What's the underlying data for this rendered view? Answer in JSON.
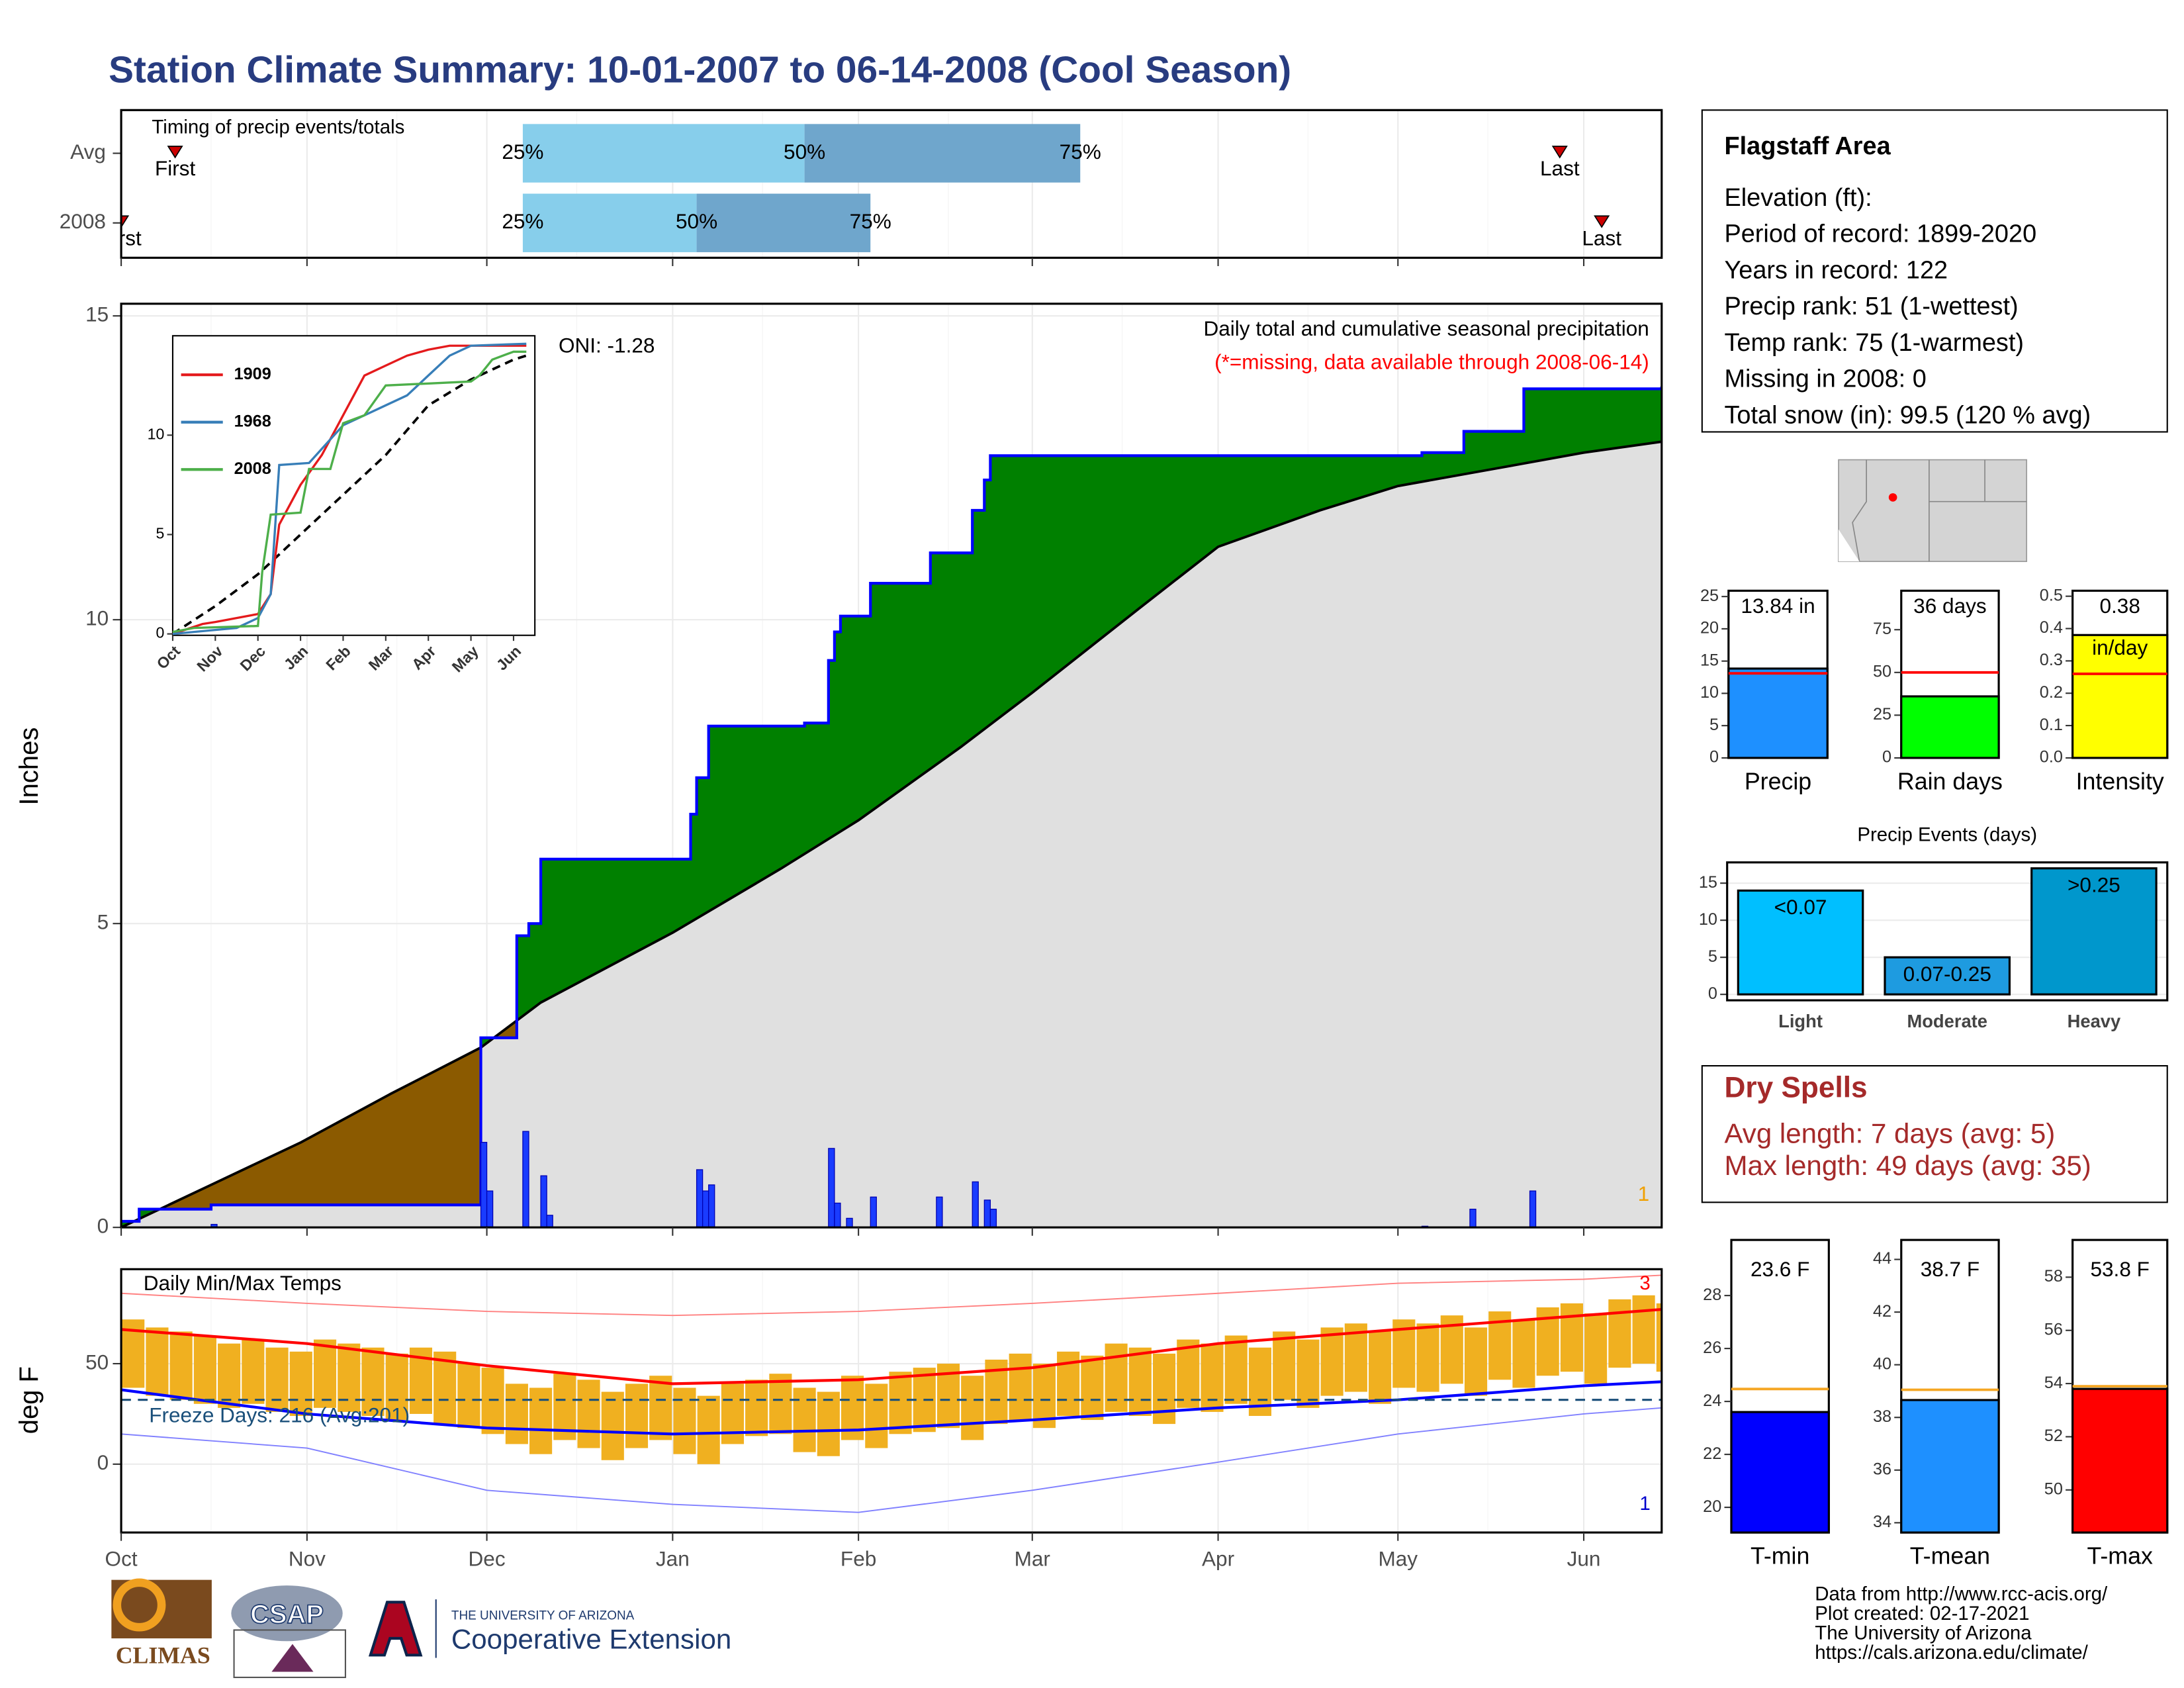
{
  "title": "Station Climate Summary: 10-01-2007 to 06-14-2008 (Cool Season)",
  "chart_data": [
    {
      "type": "timing",
      "title": "Timing of precip events/totals",
      "xlim": [
        0,
        257
      ],
      "colors": [
        "#87ceeb",
        "#6fa6cc"
      ],
      "marker_color": "#cc0000",
      "rows": [
        {
          "name": "Avg",
          "first": 9,
          "first_label": "First",
          "last": 240,
          "last_label": "Last",
          "quantiles": [
            67,
            114,
            160
          ],
          "quantile_labels": [
            "25%",
            "50%",
            "75%"
          ]
        },
        {
          "name": "2008",
          "first": 0,
          "first_label": "First",
          "last": 247,
          "last_label": "Last",
          "quantiles": [
            67,
            96,
            125
          ],
          "quantile_labels": [
            "25%",
            "50%",
            "75%"
          ]
        }
      ]
    },
    {
      "type": "precip_cumulative",
      "title": "Daily total and cumulative seasonal precipitation",
      "subtitle": "(*=missing, data available through 2008-06-14)",
      "annotation": "ONI: -1.28",
      "corner_label": "1",
      "ylabel": "Inches",
      "xlim": [
        0,
        257
      ],
      "ylim": [
        0,
        15.2
      ],
      "yticks": [
        0,
        5,
        10,
        15
      ],
      "grid": true,
      "above_color": "#008000",
      "below_color": "#8b5a00",
      "base_color": "#e0e0e0",
      "observed": {
        "color": "#0000ff",
        "x": [
          0,
          3,
          15,
          60,
          66,
          68,
          70,
          95,
          96,
          98,
          114,
          118,
          119,
          120,
          125,
          135,
          142,
          144,
          145,
          217,
          224,
          234,
          257
        ],
        "values": [
          0.1,
          0.3,
          0.37,
          3.12,
          4.8,
          5.0,
          6.06,
          6.8,
          7.4,
          8.25,
          8.3,
          9.33,
          9.8,
          10.06,
          10.6,
          11.1,
          11.8,
          12.3,
          12.7,
          12.75,
          13.1,
          13.8,
          13.84
        ]
      },
      "climatology": {
        "color": "#000000",
        "x": [
          0,
          15,
          30,
          45,
          60,
          70,
          92,
          110,
          123,
          140,
          152,
          170,
          183,
          200,
          213,
          230,
          244,
          257
        ],
        "values": [
          0,
          0.7,
          1.4,
          2.2,
          2.96,
          3.7,
          4.85,
          5.9,
          6.7,
          7.9,
          8.8,
          10.2,
          11.2,
          11.8,
          12.2,
          12.5,
          12.75,
          12.93
        ]
      },
      "daily": {
        "color": "#1a3cff",
        "x": [
          15,
          60,
          61,
          67,
          70,
          71,
          96,
          97,
          98,
          118,
          119,
          121,
          125,
          136,
          142,
          144,
          145,
          217,
          225,
          235
        ],
        "values": [
          0.05,
          1.4,
          0.6,
          1.58,
          0.85,
          0.2,
          0.95,
          0.6,
          0.7,
          1.3,
          0.4,
          0.15,
          0.5,
          0.5,
          0.75,
          0.45,
          0.3,
          0.02,
          0.3,
          0.6
        ]
      }
    },
    {
      "type": "line",
      "xlim": [
        0,
        8.5
      ],
      "ylim": [
        0,
        15
      ],
      "yticks": [
        0,
        5,
        10
      ],
      "xticks": [
        {
          "value": 0,
          "label": "Oct"
        },
        {
          "value": 1,
          "label": "Nov"
        },
        {
          "value": 2,
          "label": "Dec"
        },
        {
          "value": 3,
          "label": "Jan"
        },
        {
          "value": 4,
          "label": "Feb"
        },
        {
          "value": 5,
          "label": "Mar"
        },
        {
          "value": 6,
          "label": "Apr"
        },
        {
          "value": 7,
          "label": "May"
        },
        {
          "value": 8,
          "label": "Jun"
        }
      ],
      "series": [
        {
          "name": "1909",
          "color": "#e41a1c",
          "x": [
            0,
            0.7,
            1,
            2,
            2.3,
            2.5,
            3,
            3.5,
            4,
            4.5,
            5,
            5.5,
            6,
            6.5,
            8,
            8.3
          ],
          "values": [
            0,
            0.5,
            0.6,
            1.0,
            2.0,
            5.5,
            7.5,
            9,
            11,
            13,
            13.5,
            14,
            14.3,
            14.5,
            14.5,
            14.5
          ]
        },
        {
          "name": "1968",
          "color": "#377eb8",
          "x": [
            0,
            1,
            1.5,
            2,
            2.3,
            2.5,
            3.2,
            4,
            4.5,
            5,
            5.5,
            6,
            6.5,
            7,
            8.3
          ],
          "values": [
            0,
            0.2,
            0.3,
            0.8,
            2,
            8.5,
            8.6,
            10.5,
            11,
            11.5,
            12,
            13,
            14,
            14.5,
            14.6
          ]
        },
        {
          "name": "2008",
          "color": "#4daf4a",
          "x": [
            0,
            0.5,
            2,
            2.1,
            2.3,
            3,
            3.2,
            3.7,
            4,
            4.5,
            5,
            7,
            7.2,
            7.5,
            8,
            8.3
          ],
          "values": [
            0.1,
            0.3,
            0.4,
            3.1,
            6,
            6.1,
            8.3,
            8.3,
            10.6,
            11,
            12.5,
            12.7,
            13,
            13.8,
            14.2,
            14.2
          ]
        }
      ],
      "average": {
        "color": "#000000",
        "x": [
          0,
          1,
          2,
          3,
          4,
          5,
          6,
          7,
          8,
          8.3
        ],
        "values": [
          0,
          1.4,
          3,
          5,
          7,
          9,
          11.5,
          12.8,
          13.8,
          14.0
        ]
      }
    },
    {
      "type": "temperature_range",
      "title": "Daily Min/Max Temps",
      "ylabel": "deg F",
      "annotation": "Freeze Days: 216 (Avg:201)",
      "max_label": "3",
      "min_label": "1",
      "xlim": [
        0,
        257
      ],
      "ylim": [
        -34,
        97
      ],
      "yticks": [
        0,
        50
      ],
      "grid": true,
      "freeze_line": 32,
      "freeze_color": "#1a4f7a",
      "xticks": [
        {
          "value": 0,
          "label": "Oct"
        },
        {
          "value": 31,
          "label": "Nov"
        },
        {
          "value": 61,
          "label": "Dec"
        },
        {
          "value": 92,
          "label": "Jan"
        },
        {
          "value": 123,
          "label": "Feb"
        },
        {
          "value": 152,
          "label": "Mar"
        },
        {
          "value": 183,
          "label": "Apr"
        },
        {
          "value": 213,
          "label": "May"
        },
        {
          "value": 244,
          "label": "Jun"
        }
      ],
      "bars": {
        "color": "#f0b020",
        "x": [
          0,
          4,
          8,
          12,
          16,
          20,
          24,
          28,
          32,
          36,
          40,
          44,
          48,
          52,
          56,
          60,
          64,
          68,
          72,
          76,
          80,
          84,
          88,
          92,
          96,
          100,
          104,
          108,
          112,
          116,
          120,
          124,
          128,
          132,
          136,
          140,
          144,
          148,
          152,
          156,
          160,
          164,
          168,
          172,
          176,
          180,
          184,
          188,
          192,
          196,
          200,
          204,
          208,
          212,
          216,
          220,
          224,
          228,
          232,
          236,
          240,
          244,
          248,
          252,
          256
        ],
        "high": [
          72,
          68,
          66,
          64,
          60,
          62,
          58,
          56,
          62,
          60,
          58,
          55,
          58,
          56,
          50,
          48,
          40,
          38,
          45,
          42,
          36,
          40,
          44,
          38,
          34,
          40,
          42,
          45,
          38,
          36,
          44,
          40,
          46,
          48,
          50,
          44,
          52,
          55,
          50,
          56,
          54,
          60,
          58,
          55,
          62,
          60,
          64,
          58,
          66,
          62,
          68,
          70,
          66,
          72,
          70,
          74,
          68,
          76,
          72,
          78,
          80,
          75,
          82,
          84,
          80
        ],
        "low": [
          38,
          34,
          32,
          30,
          28,
          30,
          26,
          24,
          28,
          26,
          24,
          22,
          25,
          20,
          18,
          15,
          10,
          5,
          12,
          8,
          2,
          8,
          12,
          5,
          0,
          10,
          14,
          15,
          6,
          4,
          12,
          8,
          15,
          16,
          18,
          12,
          20,
          22,
          18,
          24,
          22,
          26,
          24,
          20,
          28,
          26,
          30,
          24,
          32,
          28,
          34,
          36,
          30,
          38,
          36,
          40,
          34,
          42,
          38,
          44,
          46,
          40,
          48,
          50,
          46
        ]
      },
      "avg_max": {
        "color": "#ff0000",
        "x": [
          0,
          31,
          61,
          92,
          123,
          152,
          183,
          213,
          244,
          257
        ],
        "values": [
          67,
          60,
          49,
          40,
          42,
          48,
          60,
          67,
          74,
          77
        ]
      },
      "avg_min": {
        "color": "#0000ff",
        "x": [
          0,
          31,
          61,
          92,
          123,
          152,
          183,
          213,
          244,
          257
        ],
        "values": [
          37,
          25,
          18,
          15,
          17,
          22,
          28,
          32,
          39,
          41
        ]
      },
      "record_max": {
        "color": "#ff8080",
        "x": [
          0,
          31,
          61,
          92,
          123,
          152,
          183,
          213,
          244,
          257
        ],
        "values": [
          85,
          80,
          76,
          74,
          76,
          80,
          85,
          90,
          92,
          94
        ]
      },
      "record_min": {
        "color": "#8080ff",
        "x": [
          0,
          31,
          61,
          92,
          123,
          152,
          183,
          213,
          244,
          257
        ],
        "values": [
          15,
          8,
          -13,
          -20,
          -24,
          -13,
          1,
          15,
          25,
          28
        ]
      }
    },
    {
      "type": "summary_bar",
      "name": "Precip",
      "value": 13.84,
      "value_label": "13.84 in",
      "average": 13.1,
      "average_color": "#ff0000",
      "color": "#1e90ff",
      "ylim": [
        0,
        25.9
      ],
      "yticks": [
        0,
        5,
        10,
        15,
        20,
        25
      ]
    },
    {
      "type": "summary_bar",
      "name": "Rain days",
      "value": 36,
      "value_label": "36 days",
      "average": 50,
      "average_color": "#ff0000",
      "color": "#00ff00",
      "ylim": [
        0,
        97.8
      ],
      "yticks": [
        0,
        25,
        50,
        75
      ]
    },
    {
      "type": "summary_bar",
      "name": "Intensity",
      "value": 0.38,
      "value_label": "0.38",
      "unit_label": "in/day",
      "average": 0.26,
      "average_color": "#ff0000",
      "color": "#ffff00",
      "ylim": [
        0,
        0.517
      ],
      "yticks": [
        {
          "value": 0,
          "label": "0.0"
        },
        0.1,
        0.2,
        0.3,
        0.4,
        0.5
      ]
    },
    {
      "type": "bar",
      "title": "Precip Events (days)",
      "categories": [
        "Light",
        "Moderate",
        "Heavy"
      ],
      "values": [
        14,
        5,
        17
      ],
      "thresholds": [
        "<0.07",
        "0.07-0.25",
        ">0.25"
      ],
      "colors": [
        "#00bfff",
        "#1e9be0",
        "#0097cc"
      ],
      "ylim": [
        -0.8,
        17.8
      ],
      "yticks": [
        0,
        5,
        10,
        15
      ],
      "grid": true
    },
    {
      "type": "summary_bar",
      "name": "T-min",
      "value": 23.6,
      "value_label": "23.6 F",
      "average": 24.47,
      "average_color": "#f5a623",
      "color": "#0000ff",
      "ylim": [
        19.05,
        30.1
      ],
      "yticks": [
        20,
        22,
        24,
        26,
        28
      ]
    },
    {
      "type": "summary_bar",
      "name": "T-mean",
      "value": 38.66,
      "value_label": "38.7 F",
      "average": 39.05,
      "average_color": "#f5a623",
      "color": "#1e90ff",
      "ylim": [
        33.63,
        44.74
      ],
      "yticks": [
        34,
        36,
        38,
        40,
        42,
        44
      ]
    },
    {
      "type": "summary_bar",
      "name": "T-max",
      "value": 53.8,
      "value_label": "53.8 F",
      "average": 53.9,
      "average_color": "#f5a623",
      "color": "#ff0000",
      "ylim": [
        48.4,
        59.4
      ],
      "yticks": [
        50,
        52,
        54,
        56,
        58
      ]
    }
  ],
  "station": {
    "name": "Flagstaff Area",
    "lines": [
      "Elevation (ft):",
      "Period of record: 1899-2020",
      "Years in record: 122",
      "Precip rank: 51 (1-wettest)",
      "Temp rank: 75 (1-warmest)",
      "Missing in 2008: 0",
      "Total snow (in): 99.5 (120 % avg)"
    ]
  },
  "dry_spells": {
    "title": "Dry Spells",
    "lines": [
      "Avg length: 7 days (avg: 5)",
      "Max length: 49 days (avg: 35)"
    ]
  },
  "footer": {
    "logos": [
      "CLIMAS",
      "CSAP",
      "THE UNIVERSITY OF ARIZONA",
      "Cooperative Extension"
    ],
    "credits": [
      "Data from http://www.rcc-acis.org/",
      "Plot created: 02-17-2021",
      "The University of Arizona",
      "https://cals.arizona.edu/climate/"
    ]
  }
}
